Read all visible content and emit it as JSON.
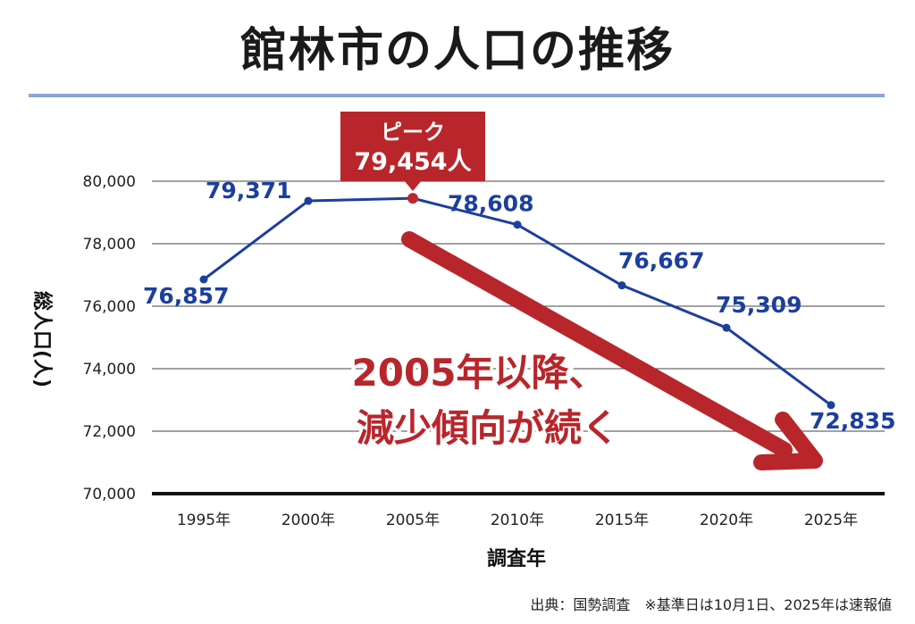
{
  "title": "館林市の人口の推移",
  "source": "出典：国勢調査　※基準日は10月1日、2025年は速報値",
  "peak_callout": {
    "line1": "ピーク",
    "line2": "79,454人"
  },
  "trend_annotation": {
    "line1": "2005年以降、",
    "line2": "減少傾向が続く"
  },
  "colors": {
    "line": "#1c3f9e",
    "peak": "#c0272d",
    "arrow": "#b8262b",
    "title_rule": "#8aa6d6"
  },
  "chart_data": {
    "type": "line",
    "title": "館林市の人口の推移",
    "xlabel": "調査年",
    "ylabel": "総人口(人)",
    "categories": [
      "1995年",
      "2000年",
      "2005年",
      "2010年",
      "2015年",
      "2020年",
      "2025年"
    ],
    "values": [
      76857,
      79371,
      79454,
      78608,
      76667,
      75309,
      72835
    ],
    "data_labels": [
      "76,857",
      "79,371",
      "",
      "78,608",
      "76,667",
      "75,309",
      "72,835"
    ],
    "ylim": [
      70000,
      80000
    ],
    "yticks": [
      70000,
      72000,
      74000,
      76000,
      78000,
      80000
    ],
    "ytick_labels": [
      "70,000",
      "72,000",
      "74,000",
      "76,000",
      "78,000",
      "80,000"
    ],
    "grid": true,
    "peak_index": 2
  }
}
